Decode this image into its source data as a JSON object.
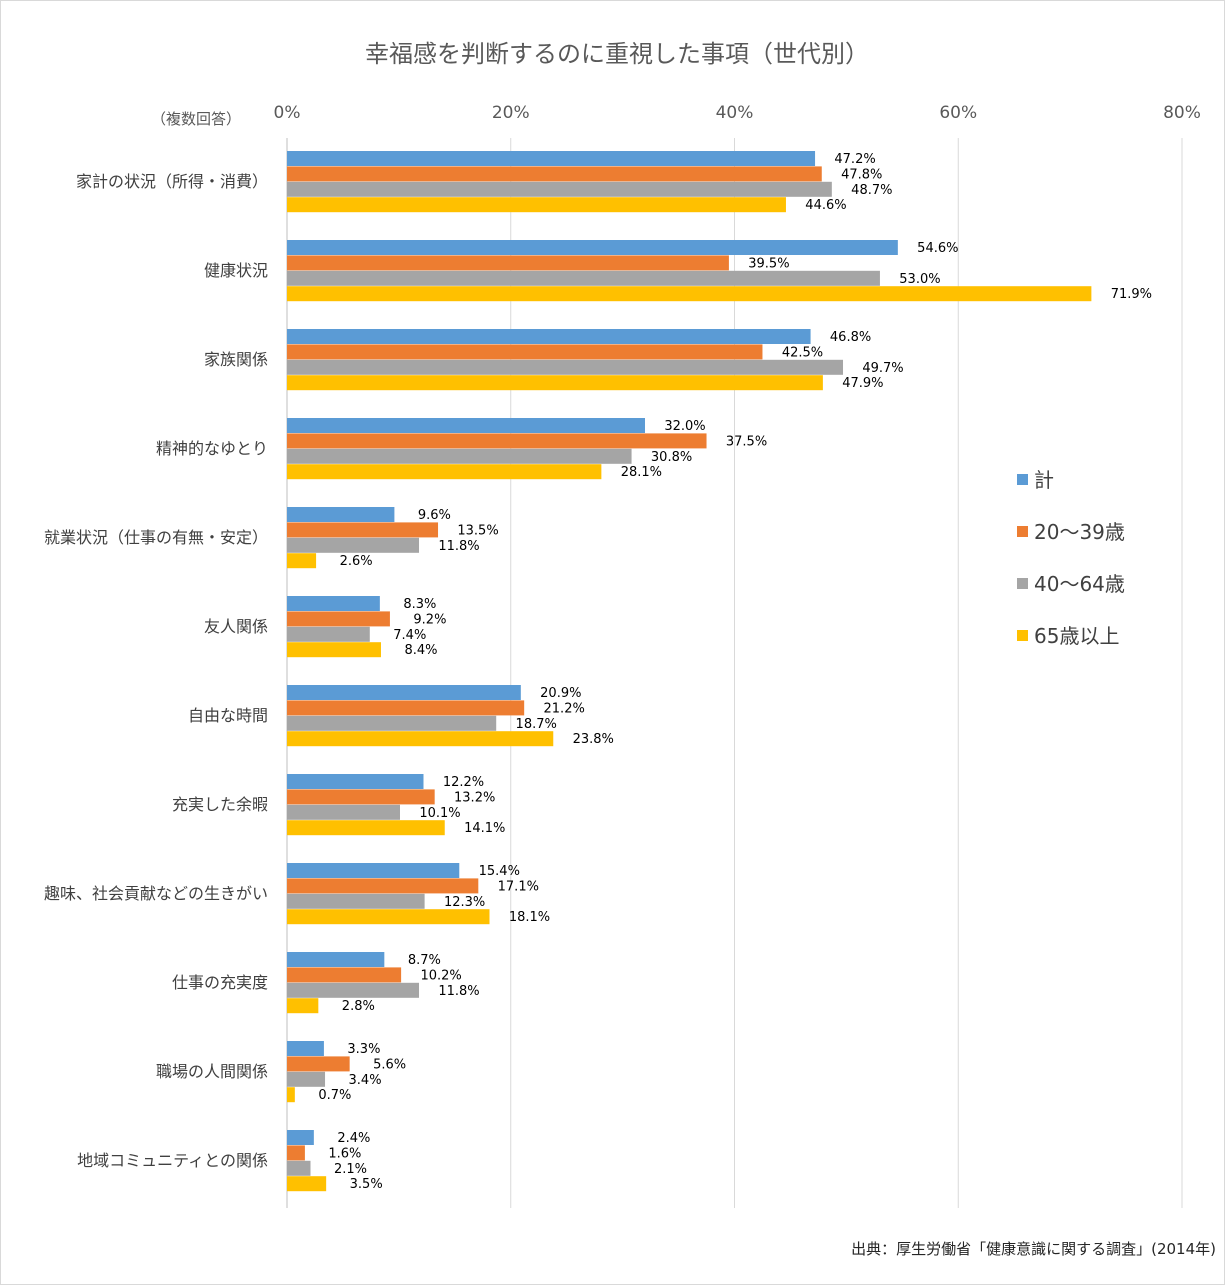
{
  "chart_data": {
    "type": "bar",
    "orientation": "horizontal",
    "title": "幸福感を判断するのに重視した事項（世代別）",
    "note": "（複数回答）",
    "source": "出典：厚生労働省「健康意識に関する調査」(2014年)",
    "xlim": [
      0,
      80
    ],
    "xticks": [
      "0%",
      "20%",
      "40%",
      "60%",
      "80%"
    ],
    "x_tick_values": [
      0,
      20,
      40,
      60,
      80
    ],
    "grid": true,
    "legend_position": "right",
    "categories": [
      "家計の状況（所得・消費）",
      "健康状況",
      "家族関係",
      "精神的なゆとり",
      "就業状況（仕事の有無・安定）",
      "友人関係",
      "自由な時間",
      "充実した余暇",
      "趣味、社会貢献などの生きがい",
      "仕事の充実度",
      "職場の人間関係",
      "地域コミュニティとの関係"
    ],
    "series": [
      {
        "name": "計",
        "color": "#5b9bd5",
        "values": [
          47.2,
          54.6,
          46.8,
          32.0,
          9.6,
          8.3,
          20.9,
          12.2,
          15.4,
          8.7,
          3.3,
          2.4
        ],
        "labels": [
          "47.2%",
          "54.6%",
          "46.8%",
          "32.0%",
          "9.6%",
          "8.3%",
          "20.9%",
          "12.2%",
          "15.4%",
          "8.7%",
          "3.3%",
          "2.4%"
        ]
      },
      {
        "name": "20〜39歳",
        "color": "#ed7d31",
        "values": [
          47.8,
          39.5,
          42.5,
          37.5,
          13.5,
          9.2,
          21.2,
          13.2,
          17.1,
          10.2,
          5.6,
          1.6
        ],
        "labels": [
          "47.8%",
          "39.5%",
          "42.5%",
          "37.5%",
          "13.5%",
          "9.2%",
          "21.2%",
          "13.2%",
          "17.1%",
          "10.2%",
          "5.6%",
          "1.6%"
        ]
      },
      {
        "name": "40〜64歳",
        "color": "#a5a5a5",
        "values": [
          48.7,
          53.0,
          49.7,
          30.8,
          11.8,
          7.4,
          18.7,
          10.1,
          12.3,
          11.8,
          3.4,
          2.1
        ],
        "labels": [
          "48.7%",
          "53.0%",
          "49.7%",
          "30.8%",
          "11.8%",
          "7.4%",
          "18.7%",
          "10.1%",
          "12.3%",
          "11.8%",
          "3.4%",
          "2.1%"
        ]
      },
      {
        "name": "65歳以上",
        "color": "#ffc000",
        "values": [
          44.6,
          71.9,
          47.9,
          28.1,
          2.6,
          8.4,
          23.8,
          14.1,
          18.1,
          2.8,
          0.7,
          3.5
        ],
        "labels": [
          "44.6%",
          "71.9%",
          "47.9%",
          "28.1%",
          "2.6%",
          "8.4%",
          "23.8%",
          "14.1%",
          "18.1%",
          "2.8%",
          "0.7%",
          "3.5%"
        ]
      }
    ]
  }
}
